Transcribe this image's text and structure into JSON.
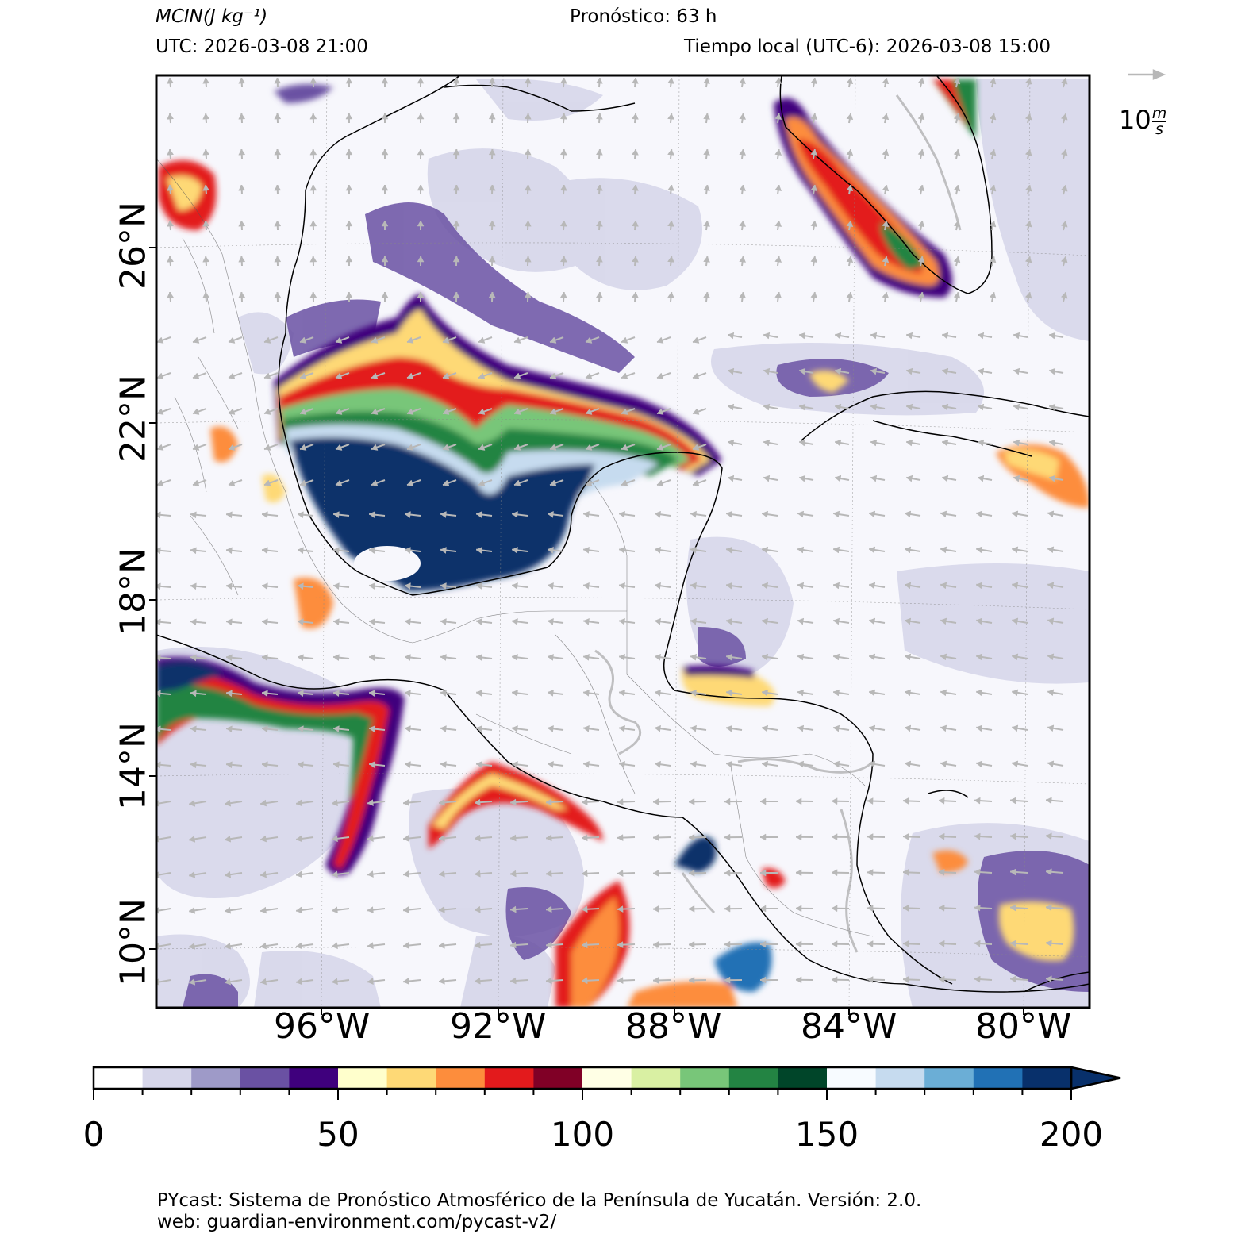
{
  "header": {
    "variable_label": "MCIN",
    "variable_units": "(J kg⁻¹)",
    "forecast": "Pronóstico: 63 h",
    "utc": "UTC:  2026-03-08 21:00",
    "local_time": "Tiempo local (UTC-6): 2026-03-08 15:00"
  },
  "map": {
    "lat_labels": [
      "26°N",
      "22°N",
      "18°N",
      "14°N",
      "10°N"
    ],
    "lon_labels": [
      "96°W",
      "92°W",
      "88°W",
      "84°W",
      "80°W"
    ],
    "wind_key": {
      "value": "10",
      "units_num": "m",
      "units_den": "s"
    }
  },
  "colorbar": {
    "ticks": [
      "0",
      "50",
      "100",
      "150",
      "200"
    ],
    "colors": [
      "#ffffff",
      "#d6d6ea",
      "#9e9ac8",
      "#6a51a3",
      "#3f007d",
      "#ffffcc",
      "#fed976",
      "#fd8d3c",
      "#e31a1c",
      "#800026",
      "#ffffe5",
      "#d9f0a3",
      "#78c679",
      "#238443",
      "#004529",
      "#f7fbff",
      "#c6dbef",
      "#6baed6",
      "#2171b5",
      "#08306b"
    ]
  },
  "footer": {
    "line1": "PYcast: Sistema de Pronóstico Atmosférico de la Península de Yucatán. Versión: 2.0.",
    "line2": "web: guardian-environment.com/pycast-v2/"
  }
}
